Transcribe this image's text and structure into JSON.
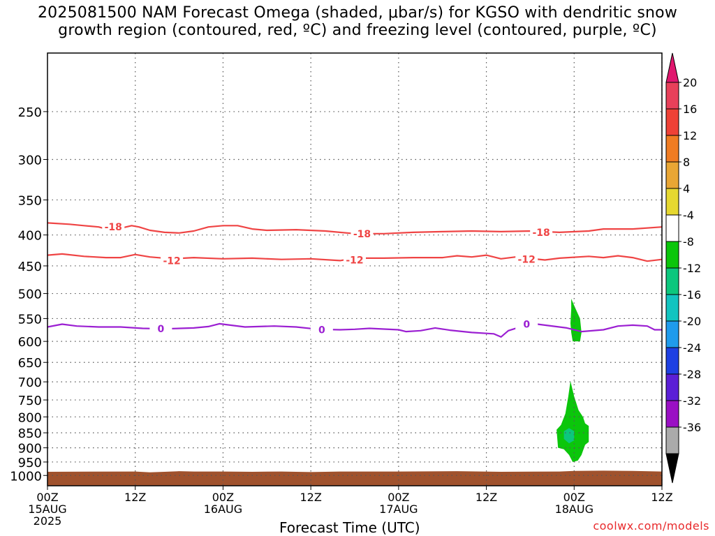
{
  "chart_data": {
    "type": "contour",
    "title_line1": "2025081500 NAM Forecast Omega (shaded, μbar/s) for KGSO with dendritic snow",
    "title_line2": "growth region (contoured, red, ºC) and freezing level (contoured, purple, ºC)",
    "xlabel": "Forecast Time (UTC)",
    "credit": "coolwx.com/models",
    "x_ticks": [
      {
        "hour": 0,
        "lines": [
          "00Z",
          "15AUG",
          "2025"
        ]
      },
      {
        "hour": 12,
        "lines": [
          "12Z"
        ]
      },
      {
        "hour": 24,
        "lines": [
          "00Z",
          "16AUG"
        ]
      },
      {
        "hour": 36,
        "lines": [
          "12Z"
        ]
      },
      {
        "hour": 48,
        "lines": [
          "00Z",
          "17AUG"
        ]
      },
      {
        "hour": 60,
        "lines": [
          "12Z"
        ]
      },
      {
        "hour": 72,
        "lines": [
          "00Z",
          "18AUG"
        ]
      },
      {
        "hour": 84,
        "lines": [
          "12Z"
        ]
      }
    ],
    "xlim": [
      0,
      84
    ],
    "y_ticks": [
      250,
      300,
      350,
      400,
      450,
      500,
      550,
      600,
      650,
      700,
      750,
      800,
      850,
      900,
      950,
      1000
    ],
    "ylim_hPa": [
      200,
      1040
    ],
    "y_scale": "log-pressure",
    "grid": true,
    "colorbar": {
      "labels": [
        "20",
        "16",
        "12",
        "8",
        "4",
        "-4",
        "-8",
        "-12",
        "-16",
        "-20",
        "-24",
        "-28",
        "-32",
        "-36"
      ],
      "colors": [
        "#e8405a",
        "#ef4136",
        "#f07c22",
        "#e9a634",
        "#e6d830",
        "#ffffff",
        "#0bc60b",
        "#0cc77d",
        "#12c4c0",
        "#1f9bec",
        "#1e40e3",
        "#5b1fd6",
        "#9a0fc4",
        "#aaaaaa"
      ],
      "top_arrow_color": "#e0176e",
      "bottom_arrow_color": "#000000"
    },
    "contours": [
      {
        "name": "dgz-minus18",
        "value": "-18",
        "color": "#ef4444",
        "points": [
          [
            0,
            382
          ],
          [
            3,
            384
          ],
          [
            5,
            386
          ],
          [
            7,
            388
          ],
          [
            8,
            391
          ],
          [
            10,
            390
          ],
          [
            11.5,
            386
          ],
          [
            12.5,
            388
          ],
          [
            14,
            393
          ],
          [
            16,
            396
          ],
          [
            18,
            397
          ],
          [
            20,
            394
          ],
          [
            22,
            388
          ],
          [
            24,
            386
          ],
          [
            26,
            386
          ],
          [
            28,
            391
          ],
          [
            30,
            393
          ],
          [
            34,
            392
          ],
          [
            38,
            394
          ],
          [
            42,
            398
          ],
          [
            46,
            398
          ],
          [
            50,
            396
          ],
          [
            54,
            395
          ],
          [
            58,
            394
          ],
          [
            62,
            395
          ],
          [
            66,
            394
          ],
          [
            70,
            396
          ],
          [
            74,
            394
          ],
          [
            76,
            391
          ],
          [
            80,
            391
          ],
          [
            84,
            388
          ]
        ],
        "labels": [
          [
            9,
            388
          ],
          [
            43,
            398
          ],
          [
            67.5,
            396
          ]
        ]
      },
      {
        "name": "dgz-minus12",
        "value": "-12",
        "color": "#ef4444",
        "points": [
          [
            0,
            432
          ],
          [
            2,
            430
          ],
          [
            5,
            434
          ],
          [
            8,
            436
          ],
          [
            10,
            436
          ],
          [
            12,
            431
          ],
          [
            14,
            435
          ],
          [
            17,
            438
          ],
          [
            20,
            436
          ],
          [
            24,
            438
          ],
          [
            28,
            437
          ],
          [
            32,
            439
          ],
          [
            36,
            438
          ],
          [
            40,
            441
          ],
          [
            42,
            437
          ],
          [
            46,
            437
          ],
          [
            50,
            436
          ],
          [
            54,
            436
          ],
          [
            56,
            433
          ],
          [
            58,
            435
          ],
          [
            60,
            432
          ],
          [
            62,
            438
          ],
          [
            64,
            435
          ],
          [
            68,
            440
          ],
          [
            70,
            437
          ],
          [
            74,
            434
          ],
          [
            76,
            436
          ],
          [
            78,
            433
          ],
          [
            80,
            436
          ],
          [
            82,
            442
          ],
          [
            84,
            439
          ]
        ],
        "labels": [
          [
            17,
            441
          ],
          [
            42,
            440
          ],
          [
            65.5,
            439
          ]
        ]
      },
      {
        "name": "freezing-level",
        "value": "0",
        "color": "#9b1fd2",
        "points": [
          [
            0,
            568
          ],
          [
            2,
            562
          ],
          [
            4,
            566
          ],
          [
            7,
            568
          ],
          [
            10,
            568
          ],
          [
            13,
            571
          ],
          [
            16,
            572
          ],
          [
            20,
            570
          ],
          [
            22,
            567
          ],
          [
            23.5,
            561
          ],
          [
            25,
            564
          ],
          [
            27,
            568
          ],
          [
            31,
            566
          ],
          [
            34,
            568
          ],
          [
            37,
            573
          ],
          [
            40,
            574
          ],
          [
            42,
            573
          ],
          [
            44,
            571
          ],
          [
            48,
            574
          ],
          [
            49,
            578
          ],
          [
            51,
            576
          ],
          [
            53,
            570
          ],
          [
            55,
            575
          ],
          [
            58,
            580
          ],
          [
            61,
            583
          ],
          [
            62,
            590
          ],
          [
            63,
            576
          ],
          [
            65,
            566
          ],
          [
            66,
            560
          ],
          [
            68,
            564
          ],
          [
            71,
            570
          ],
          [
            73,
            578
          ],
          [
            76,
            574
          ],
          [
            78,
            566
          ],
          [
            80,
            564
          ],
          [
            82,
            566
          ],
          [
            83,
            574
          ],
          [
            84,
            574
          ]
        ],
        "labels": [
          [
            15.5,
            572
          ],
          [
            37.5,
            574
          ],
          [
            65.5,
            562
          ]
        ]
      }
    ],
    "omega_regions": [
      {
        "name": "omega-region-mid-level",
        "band": "-8",
        "color": "#0bc60b",
        "points": [
          [
            71.6,
            510
          ],
          [
            72.2,
            530
          ],
          [
            72.8,
            550
          ],
          [
            73,
            580
          ],
          [
            72.8,
            600
          ],
          [
            71.8,
            600
          ],
          [
            71.6,
            580
          ],
          [
            71.5,
            560
          ],
          [
            71.6,
            530
          ]
        ]
      },
      {
        "name": "omega-region-low-level",
        "band": "-8",
        "color": "#0bc60b",
        "points": [
          [
            71.5,
            698
          ],
          [
            72,
            740
          ],
          [
            72.6,
            780
          ],
          [
            73.2,
            800
          ],
          [
            73.5,
            820
          ],
          [
            74,
            828
          ],
          [
            74,
            880
          ],
          [
            73.5,
            890
          ],
          [
            73,
            925
          ],
          [
            72.5,
            945
          ],
          [
            71.8,
            950
          ],
          [
            71.3,
            925
          ],
          [
            70.6,
            905
          ],
          [
            69.8,
            900
          ],
          [
            69.6,
            840
          ],
          [
            70.2,
            825
          ],
          [
            70.8,
            790
          ],
          [
            71.2,
            740
          ]
        ]
      },
      {
        "name": "omega-region-low-level-core",
        "band": "-12",
        "color": "#0cc77d",
        "points": [
          [
            71.3,
            835
          ],
          [
            72,
            845
          ],
          [
            72,
            875
          ],
          [
            71.3,
            885
          ],
          [
            70.6,
            870
          ],
          [
            70.6,
            845
          ]
        ]
      }
    ],
    "terrain": {
      "name": "terrain-ground",
      "color": "#a0522d",
      "top_points": [
        [
          0,
          986
        ],
        [
          12,
          985
        ],
        [
          14,
          988
        ],
        [
          16,
          986
        ],
        [
          18,
          984
        ],
        [
          20,
          985
        ],
        [
          24,
          985
        ],
        [
          28,
          986
        ],
        [
          32,
          985
        ],
        [
          36,
          987
        ],
        [
          40,
          985
        ],
        [
          48,
          985
        ],
        [
          56,
          984
        ],
        [
          62,
          986
        ],
        [
          70,
          985
        ],
        [
          72,
          983
        ],
        [
          76,
          982
        ],
        [
          80,
          983
        ],
        [
          84,
          985
        ]
      ]
    }
  }
}
